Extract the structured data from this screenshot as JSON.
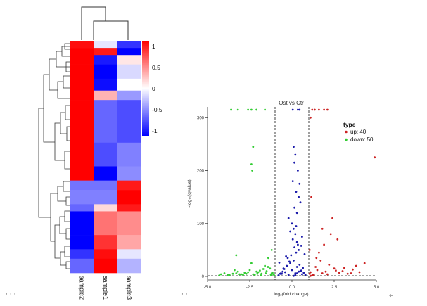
{
  "chart_data": [
    {
      "type": "heatmap",
      "columns": [
        "sample2",
        "sample1",
        "sample3"
      ],
      "colorbar": {
        "ticks": [
          1,
          0.5,
          0,
          -0.5,
          -1
        ],
        "low_color": "#0000ff",
        "mid_color": "#ffffff",
        "high_color": "#ff0000"
      },
      "bands": [
        {
          "rows": 3,
          "values": [
            0.95,
            -0.1,
            -0.8
          ]
        },
        {
          "rows": 3,
          "values": [
            1.0,
            0.9,
            -1.0
          ]
        },
        {
          "rows": 4,
          "values": [
            1.0,
            -0.9,
            0.1
          ]
        },
        {
          "rows": 6,
          "values": [
            1.0,
            -1.0,
            -0.15
          ]
        },
        {
          "rows": 5,
          "values": [
            1.0,
            -0.95,
            0.0
          ]
        },
        {
          "rows": 4,
          "values": [
            1.0,
            0.3,
            -0.4
          ]
        },
        {
          "rows": 18,
          "values": [
            1.0,
            -0.6,
            -0.7
          ]
        },
        {
          "rows": 10,
          "values": [
            1.0,
            -0.7,
            -0.5
          ]
        },
        {
          "rows": 6,
          "values": [
            1.0,
            -1.0,
            -0.45
          ]
        },
        {
          "rows": 4,
          "values": [
            -0.55,
            -0.55,
            0.9
          ]
        },
        {
          "rows": 6,
          "values": [
            -0.5,
            -0.5,
            1.0
          ]
        },
        {
          "rows": 3,
          "values": [
            -0.6,
            0.15,
            0.9
          ]
        },
        {
          "rows": 10,
          "values": [
            -1.0,
            0.55,
            0.45
          ]
        },
        {
          "rows": 6,
          "values": [
            -1.0,
            0.8,
            0.35
          ]
        },
        {
          "rows": 4,
          "values": [
            -0.8,
            0.95,
            -0.1
          ]
        },
        {
          "rows": 6,
          "values": [
            -0.6,
            1.0,
            -0.3
          ]
        }
      ]
    },
    {
      "type": "scatter",
      "title": "Ost  vs  Ctr",
      "xlabel": "log₂(fold change)",
      "ylabel": "-log₁₀(qvalue)",
      "xlim": [
        -5.0,
        5.0
      ],
      "ylim": [
        0,
        315
      ],
      "xticks": [
        "-5.0",
        "-2.5",
        "0.0",
        "2.5",
        "5.0"
      ],
      "yticks": [
        "0",
        "100",
        "200",
        "300"
      ],
      "vlines": [
        -1,
        1
      ],
      "hline": 1.3,
      "legend_title": "type",
      "legend_position": "right",
      "series": [
        {
          "name": "up: 40",
          "color": "#cc2222",
          "x": [
            1.05,
            1.1,
            1.3,
            1.5,
            1.8,
            2.0,
            2.1,
            2.5,
            2.8,
            3.0,
            3.3,
            3.6,
            4.0,
            4.3,
            1.2,
            1.4,
            1.7,
            2.2,
            2.6,
            3.1,
            3.5,
            1.6,
            1.9,
            2.3,
            2.4,
            1.15,
            1.25,
            1.45,
            2.7,
            3.8,
            1.05,
            1.1,
            4.9,
            1.8,
            1.9,
            1.6,
            1.35,
            2.1,
            1.2,
            1.1
          ],
          "y": [
            5,
            8,
            3,
            12,
            6,
            9,
            4,
            15,
            7,
            10,
            5,
            13,
            8,
            25,
            2,
            18,
            30,
            22,
            11,
            16,
            6,
            45,
            60,
            80,
            110,
            150,
            3,
            35,
            70,
            20,
            50,
            300,
            225,
            90,
            315,
            315,
            315,
            315,
            315,
            1
          ]
        },
        {
          "name": "down: 50",
          "color": "#33cc33",
          "x": [
            -1.1,
            -1.2,
            -1.5,
            -1.8,
            -2.0,
            -2.2,
            -2.5,
            -2.8,
            -3.0,
            -3.2,
            -3.5,
            -3.8,
            -4.0,
            -1.3,
            -1.6,
            -1.9,
            -2.3,
            -2.6,
            -2.9,
            -3.3,
            -1.05,
            -1.4,
            -1.7,
            -2.1,
            -2.4,
            -2.7,
            -3.1,
            -3.4,
            -3.7,
            -4.2,
            -1.15,
            -1.25,
            -1.45,
            -1.55,
            -1.85,
            -2.05,
            -3.3,
            -2.3,
            -2.4,
            -2.35,
            -1.2,
            -1.4,
            -2.6,
            -3.6,
            -3.2,
            -3.6,
            -2.4,
            -2.1,
            -1.6,
            -4.3
          ],
          "y": [
            4,
            6,
            10,
            5,
            8,
            3,
            12,
            7,
            4,
            9,
            5,
            3,
            6,
            15,
            20,
            11,
            4,
            8,
            3,
            6,
            2,
            35,
            14,
            9,
            25,
            5,
            4,
            12,
            3,
            4,
            7,
            3,
            18,
            6,
            2,
            5,
            40,
            245,
            212,
            200,
            50,
            18,
            315,
            315,
            315,
            315,
            315,
            315,
            315,
            2
          ]
        },
        {
          "name": "",
          "color": "#1a1aaa",
          "x": [
            -0.8,
            -0.6,
            -0.4,
            -0.2,
            0.0,
            0.2,
            0.4,
            0.6,
            0.8,
            -0.5,
            -0.3,
            -0.1,
            0.1,
            0.3,
            0.5,
            -0.7,
            0.7,
            -0.05,
            0.15,
            0.35,
            -0.25,
            0.25,
            0.05,
            -0.15,
            0.45,
            -0.45,
            0.55,
            0.65,
            -0.55,
            -0.65,
            0.0,
            0.1,
            0.2,
            0.3,
            0.4,
            0.15,
            0.25,
            -0.1,
            0.05,
            0.35,
            0.45,
            0.5,
            0.2,
            0.1,
            -0.2,
            0.3,
            0.4,
            0.6,
            0.25,
            0.15,
            -0.35,
            0.55,
            0.75,
            -0.75,
            0.05,
            0.35,
            0.45,
            0.1,
            0.2,
            0.3
          ],
          "y": [
            2,
            5,
            8,
            3,
            12,
            6,
            9,
            4,
            3,
            15,
            20,
            25,
            30,
            18,
            10,
            5,
            7,
            40,
            55,
            60,
            35,
            45,
            70,
            28,
            22,
            14,
            11,
            16,
            9,
            6,
            100,
            90,
            80,
            120,
            150,
            130,
            160,
            85,
            180,
            200,
            175,
            140,
            230,
            245,
            110,
            65,
            50,
            75,
            95,
            215,
            38,
            58,
            42,
            26,
            315,
            315,
            315,
            1,
            3,
            6
          ]
        }
      ]
    }
  ]
}
